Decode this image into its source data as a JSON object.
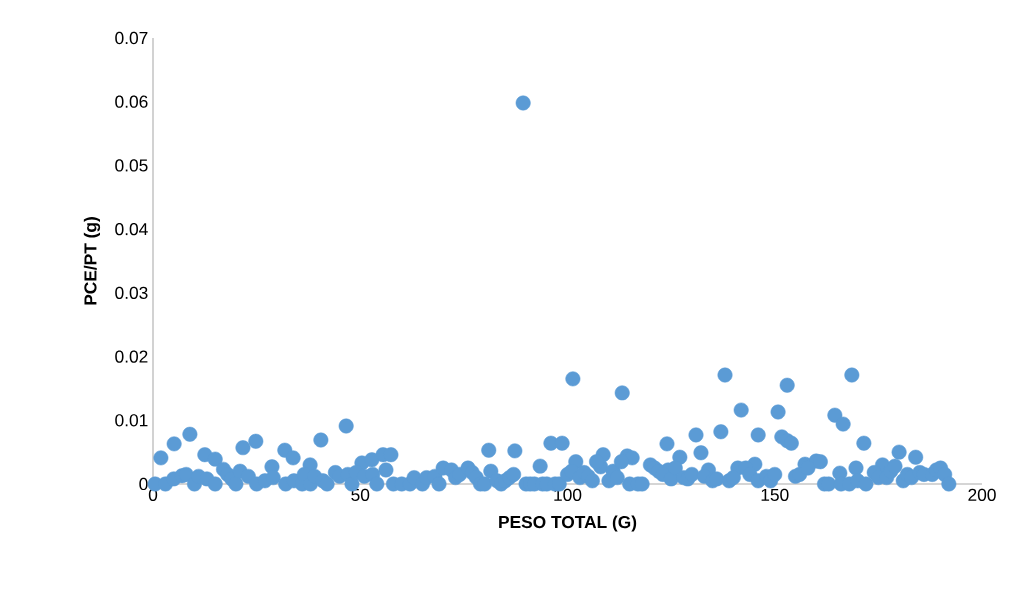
{
  "chart_data": {
    "type": "scatter",
    "xlabel": "PESO TOTAL (G)",
    "ylabel": "PCE/PT (g)",
    "xlim": [
      0,
      200
    ],
    "xticks": [
      0,
      50,
      100,
      150,
      200
    ],
    "ylim": [
      0,
      0.07
    ],
    "yticks": [
      0,
      0.01,
      0.02,
      0.03,
      0.04,
      0.05,
      0.06,
      0.07
    ],
    "grid": false,
    "marker": "circle",
    "series": [
      {
        "color": "#5b9bd5",
        "x": [
          1.9,
          5.1,
          8.9,
          12.5,
          15,
          21.7,
          24.8,
          28.7,
          31.8,
          33.8,
          37.9,
          40.5,
          46.6,
          50.4,
          52.8,
          55.5,
          57.4,
          56.2,
          81,
          87.3,
          89.3,
          93.4,
          96,
          98.7,
          101.3,
          102,
          108,
          108.6,
          113.2,
          114.4,
          115.6,
          124,
          124.3,
          127.1,
          131,
          132.2,
          134,
          137,
          138,
          141.9,
          141.1,
          145.2,
          146,
          150.8,
          151.7,
          153,
          153,
          154,
          157.3,
          160,
          164.5,
          166.5,
          168.6,
          171.5,
          169.6,
          180,
          184,
          176,
          165.7,
          0.5,
          3,
          5,
          7,
          8,
          10,
          11,
          13,
          15,
          17,
          18,
          19,
          20,
          21,
          23,
          25,
          27,
          29,
          32,
          34,
          36,
          36.5,
          38,
          39,
          41,
          42,
          44,
          45,
          47,
          48,
          49,
          51,
          53,
          54,
          58,
          60,
          62,
          63,
          65,
          66,
          68,
          69,
          70,
          72,
          73,
          74,
          76,
          77,
          78,
          79,
          80,
          81.5,
          83,
          84,
          85,
          86,
          87,
          90,
          91,
          92,
          94,
          95,
          97,
          98,
          100,
          101,
          103,
          104,
          105,
          106,
          107,
          110,
          111,
          112,
          113,
          115,
          117,
          118,
          120,
          121,
          122,
          123,
          125,
          126,
          128,
          129,
          130,
          133,
          135,
          136,
          139,
          140,
          143,
          144,
          146,
          148,
          149,
          150,
          155,
          156,
          158,
          161,
          162,
          163,
          166,
          168,
          170,
          172,
          174,
          175,
          177,
          178,
          179,
          181,
          182,
          183,
          185,
          186,
          188,
          189,
          190,
          191,
          192
        ],
        "values": [
          0.0041,
          0.0063,
          0.0078,
          0.0046,
          0.0039,
          0.0057,
          0.0067,
          0.0027,
          0.0053,
          0.0041,
          0.003,
          0.0069,
          0.0091,
          0.0033,
          0.0038,
          0.0046,
          0.0046,
          0.0022,
          0.0053,
          0.0052,
          0.0598,
          0.0028,
          0.0064,
          0.0064,
          0.0165,
          0.0035,
          0.0027,
          0.0046,
          0.0143,
          0.0044,
          0.0041,
          0.0063,
          0.0022,
          0.0042,
          0.0077,
          0.0049,
          0.0022,
          0.0082,
          0.0171,
          0.0116,
          0.0025,
          0.0031,
          0.0077,
          0.0113,
          0.0074,
          0.0068,
          0.0155,
          0.0064,
          0.0031,
          0.0036,
          0.0108,
          0.0094,
          0.0171,
          0.0064,
          0.0025,
          0.005,
          0.0042,
          0.003,
          0.0017,
          0,
          0,
          0.0008,
          0.0013,
          0.0015,
          0,
          0.0012,
          0.0008,
          0,
          0.0023,
          0.0015,
          0.0008,
          0,
          0.002,
          0.0012,
          0,
          0.0005,
          0.001,
          0,
          0.0005,
          0,
          0.0015,
          0,
          0.0012,
          0.0005,
          0,
          0.0018,
          0.0012,
          0.0015,
          0,
          0.0018,
          0.0012,
          0.0015,
          0,
          0,
          0,
          0,
          0.001,
          0,
          0.001,
          0.0012,
          0,
          0.0025,
          0.0022,
          0.001,
          0.0015,
          0.0025,
          0.0018,
          0.001,
          0,
          0,
          0.002,
          0.0005,
          0,
          0.0005,
          0.001,
          0.0015,
          0,
          0,
          0,
          0,
          0,
          0,
          0,
          0.0015,
          0.002,
          0.001,
          0.0018,
          0.0012,
          0.0005,
          0.0035,
          0.0005,
          0.002,
          0.001,
          0.0035,
          0,
          0,
          0,
          0.003,
          0.0025,
          0.002,
          0.0015,
          0.0008,
          0.0025,
          0.001,
          0.0008,
          0.0015,
          0.0012,
          0.0005,
          0.0008,
          0.0005,
          0.001,
          0.0025,
          0.0015,
          0.0005,
          0.0012,
          0.0005,
          0.0015,
          0.0012,
          0.0015,
          0.0025,
          0.0035,
          0,
          0,
          0,
          0,
          0.0005,
          0,
          0.0018,
          0.001,
          0.001,
          0.002,
          0.0028,
          0.0005,
          0.0015,
          0.001,
          0.0018,
          0.0015,
          0.0015,
          0.0022,
          0.0025,
          0.0015,
          0
        ]
      }
    ]
  }
}
